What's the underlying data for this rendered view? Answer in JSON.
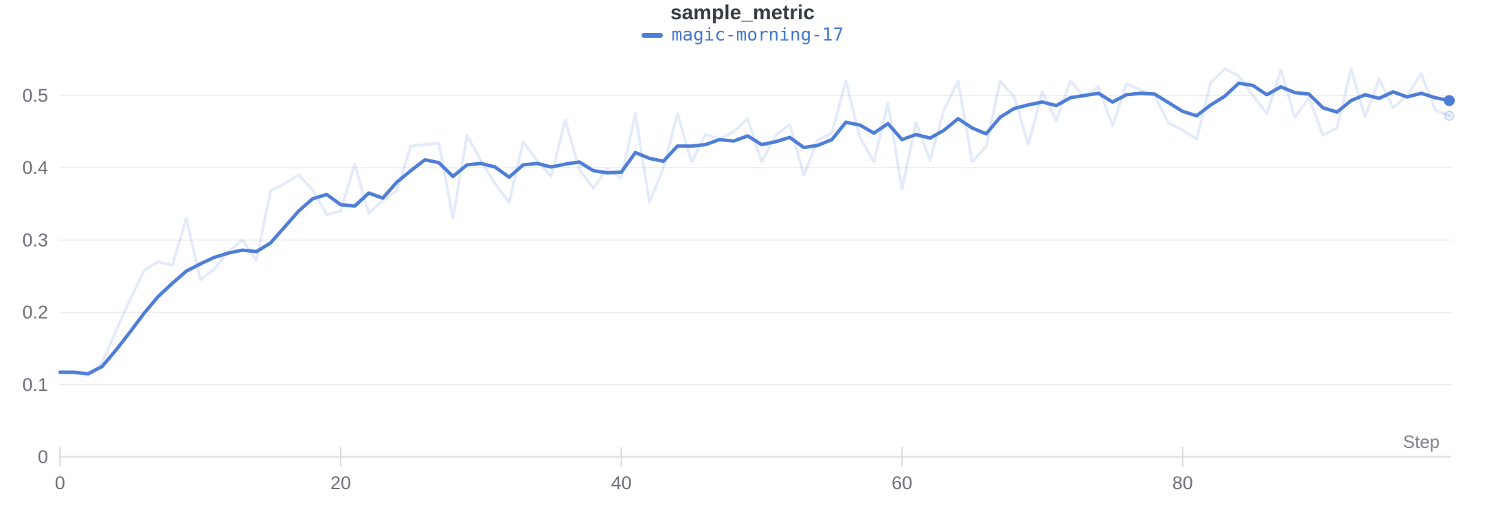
{
  "title": "sample_metric",
  "legend": {
    "label": "magic-morning-17"
  },
  "axes": {
    "x_label": "Step",
    "x_tick_labels": [
      "0",
      "20",
      "40",
      "60",
      "80"
    ],
    "x_tick_values": [
      0,
      20,
      40,
      60,
      80
    ],
    "y_tick_labels": [
      "0.5",
      "0.4",
      "0.3",
      "0.2",
      "0.1",
      "0"
    ],
    "y_tick_values": [
      0.5,
      0.4,
      0.3,
      0.2,
      0.1,
      0
    ]
  },
  "colors": {
    "line_blue": "#4e7ed7",
    "legend_text_blue": "#4478cf",
    "raw_line_blue_faint": "rgba(78,126,215,0.16)",
    "title_text": "#383c44",
    "tick_text": "#70707b",
    "axis_label_text": "#81818b",
    "gridline": "#ebebee",
    "axis_baseline": "#e4e4e8",
    "tick_mark": "#d8d8de",
    "background": "#ffffff"
  },
  "chart_data": {
    "type": "line",
    "title": "sample_metric",
    "xlabel": "Step",
    "ylabel": "",
    "x_range": [
      0,
      99
    ],
    "ylim": [
      0,
      0.55
    ],
    "grid": "horizontal",
    "legend_position": "top-center",
    "x": [
      0,
      1,
      2,
      3,
      4,
      5,
      6,
      7,
      8,
      9,
      10,
      11,
      12,
      13,
      14,
      15,
      16,
      17,
      18,
      19,
      20,
      21,
      22,
      23,
      24,
      25,
      26,
      27,
      28,
      29,
      30,
      31,
      32,
      33,
      34,
      35,
      36,
      37,
      38,
      39,
      40,
      41,
      42,
      43,
      44,
      45,
      46,
      47,
      48,
      49,
      50,
      51,
      52,
      53,
      54,
      55,
      56,
      57,
      58,
      59,
      60,
      61,
      62,
      63,
      64,
      65,
      66,
      67,
      68,
      69,
      70,
      71,
      72,
      73,
      74,
      75,
      76,
      77,
      78,
      79,
      80,
      81,
      82,
      83,
      84,
      85,
      86,
      87,
      88,
      89,
      90,
      91,
      92,
      93,
      94,
      95,
      96,
      97,
      98,
      99
    ],
    "series": [
      {
        "name": "magic-morning-17",
        "role": "smoothed-line",
        "color": "#4e7ed7",
        "endpoint_value": 0.493,
        "values": [
          0.117,
          0.117,
          0.115,
          0.125,
          0.148,
          0.173,
          0.199,
          0.222,
          0.24,
          0.257,
          0.267,
          0.276,
          0.282,
          0.286,
          0.284,
          0.296,
          0.318,
          0.34,
          0.357,
          0.363,
          0.349,
          0.347,
          0.365,
          0.358,
          0.38,
          0.396,
          0.411,
          0.407,
          0.388,
          0.404,
          0.406,
          0.401,
          0.387,
          0.404,
          0.406,
          0.401,
          0.405,
          0.408,
          0.396,
          0.393,
          0.394,
          0.421,
          0.413,
          0.409,
          0.43,
          0.43,
          0.432,
          0.439,
          0.437,
          0.444,
          0.432,
          0.436,
          0.442,
          0.428,
          0.431,
          0.439,
          0.463,
          0.459,
          0.448,
          0.461,
          0.439,
          0.446,
          0.441,
          0.452,
          0.468,
          0.455,
          0.447,
          0.47,
          0.482,
          0.487,
          0.491,
          0.486,
          0.497,
          0.5,
          0.503,
          0.491,
          0.501,
          0.503,
          0.502,
          0.49,
          0.478,
          0.472,
          0.487,
          0.499,
          0.517,
          0.514,
          0.501,
          0.512,
          0.504,
          0.502,
          0.483,
          0.477,
          0.493,
          0.501,
          0.496,
          0.505,
          0.498,
          0.503,
          0.497,
          0.493
        ]
      },
      {
        "name": "magic-morning-17 (original)",
        "role": "raw-line-faint",
        "color": "rgba(78,126,215,0.16)",
        "endpoint_value": 0.472,
        "values": [
          0.117,
          0.116,
          0.112,
          0.13,
          0.175,
          0.218,
          0.258,
          0.27,
          0.265,
          0.33,
          0.245,
          0.26,
          0.284,
          0.3,
          0.272,
          0.368,
          0.378,
          0.39,
          0.37,
          0.335,
          0.34,
          0.405,
          0.337,
          0.355,
          0.368,
          0.43,
          0.432,
          0.434,
          0.33,
          0.445,
          0.41,
          0.378,
          0.352,
          0.436,
          0.41,
          0.388,
          0.466,
          0.398,
          0.372,
          0.398,
          0.386,
          0.475,
          0.352,
          0.4,
          0.475,
          0.408,
          0.446,
          0.44,
          0.45,
          0.468,
          0.408,
          0.445,
          0.46,
          0.39,
          0.438,
          0.448,
          0.52,
          0.442,
          0.408,
          0.49,
          0.37,
          0.463,
          0.41,
          0.48,
          0.52,
          0.408,
          0.43,
          0.52,
          0.498,
          0.432,
          0.505,
          0.465,
          0.52,
          0.498,
          0.512,
          0.458,
          0.516,
          0.508,
          0.5,
          0.462,
          0.452,
          0.44,
          0.518,
          0.537,
          0.527,
          0.5,
          0.475,
          0.535,
          0.47,
          0.497,
          0.445,
          0.455,
          0.537,
          0.47,
          0.523,
          0.483,
          0.5,
          0.53,
          0.48,
          0.472
        ]
      }
    ]
  }
}
